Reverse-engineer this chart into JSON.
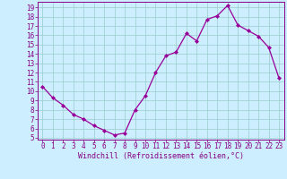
{
  "x": [
    0,
    1,
    2,
    3,
    4,
    5,
    6,
    7,
    8,
    9,
    10,
    11,
    12,
    13,
    14,
    15,
    16,
    17,
    18,
    19,
    20,
    21,
    22,
    23
  ],
  "y": [
    10.5,
    9.3,
    8.5,
    7.5,
    7.0,
    6.3,
    5.8,
    5.3,
    5.5,
    8.0,
    9.5,
    12.0,
    13.8,
    14.2,
    16.2,
    15.4,
    17.7,
    18.1,
    19.2,
    17.1,
    16.5,
    15.9,
    14.7,
    11.4
  ],
  "line_color": "#990099",
  "marker": "D",
  "marker_size": 2.0,
  "bg_color": "#cceeff",
  "grid_color": "#99cccc",
  "xlabel": "Windchill (Refroidissement éolien,°C)",
  "xlabel_color": "#880088",
  "tick_color": "#880088",
  "ylim": [
    4.8,
    19.6
  ],
  "xlim": [
    -0.5,
    23.5
  ],
  "yticks": [
    5,
    6,
    7,
    8,
    9,
    10,
    11,
    12,
    13,
    14,
    15,
    16,
    17,
    18,
    19
  ],
  "xticks": [
    0,
    1,
    2,
    3,
    4,
    5,
    6,
    7,
    8,
    9,
    10,
    11,
    12,
    13,
    14,
    15,
    16,
    17,
    18,
    19,
    20,
    21,
    22,
    23
  ],
  "tick_fontsize": 5.5,
  "xlabel_fontsize": 6.0,
  "linewidth": 0.9
}
